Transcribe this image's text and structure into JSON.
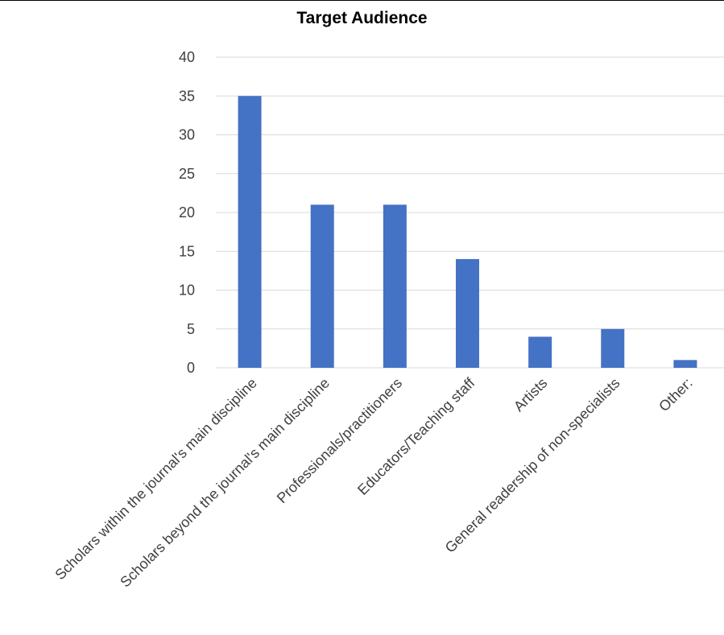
{
  "chart_data": {
    "type": "bar",
    "title": "Target Audience",
    "xlabel": "",
    "ylabel": "",
    "categories": [
      "Scholars within the journal's main discipline",
      "Scholars beyond the journal's main discipline",
      "Professionals/practitioners",
      "Educators/Teaching staff",
      "Artists",
      "General readership of non-specialists",
      "Other:"
    ],
    "values": [
      35,
      21,
      21,
      14,
      4,
      5,
      1
    ],
    "ylim": [
      0,
      40
    ],
    "yticks": [
      0,
      5,
      10,
      15,
      20,
      25,
      30,
      35,
      40
    ],
    "grid": true,
    "legend": "none",
    "bar_color": "#4472C4",
    "grid_color": "#D9D9D9"
  }
}
